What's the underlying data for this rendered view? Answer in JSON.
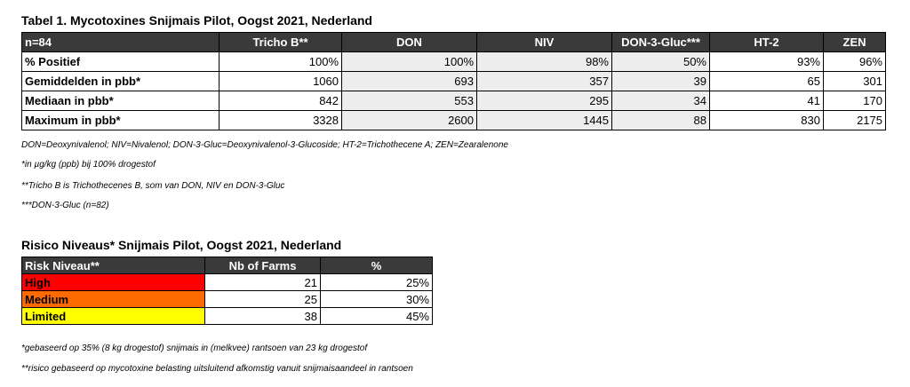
{
  "table1": {
    "title": "Tabel 1. Mycotoxines Snijmais Pilot, Oogst 2021, Nederland",
    "headers": [
      "n=84",
      "Tricho B**",
      "DON",
      "NIV",
      "DON-3-Gluc***",
      "HT-2",
      "ZEN"
    ],
    "rows": [
      {
        "label": "% Positief",
        "values": [
          "100%",
          "100%",
          "98%",
          "50%",
          "93%",
          "96%"
        ]
      },
      {
        "label": "Gemiddelden in pbb*",
        "values": [
          "1060",
          "693",
          "357",
          "39",
          "65",
          "301"
        ]
      },
      {
        "label": "Mediaan in pbb*",
        "values": [
          "842",
          "553",
          "295",
          "34",
          "41",
          "170"
        ]
      },
      {
        "label": "Maximum in pbb*",
        "values": [
          "3328",
          "2600",
          "1445",
          "88",
          "830",
          "2175"
        ]
      }
    ],
    "notes": [
      "DON=Deoxynivalenol; NIV=Nivalenol; DON-3-Gluc=Deoxynivalenol-3-Glucoside; HT-2=Trichothecene A; ZEN=Zearalenone",
      "*in  µg/kg (ppb) bij 100% drogestof",
      "**Tricho B is Trichothecenes B, som van DON, NIV en DON-3-Gluc",
      "***DON-3-Gluc (n=82)"
    ]
  },
  "table2": {
    "title": "Risico Niveaus* Snijmais Pilot, Oogst 2021, Nederland",
    "headers": [
      "Risk Niveau**",
      "Nb of Farms",
      "%"
    ],
    "rows": [
      {
        "label": "High",
        "farms": "21",
        "pct": "25%",
        "color": "#ff0000"
      },
      {
        "label": "Medium",
        "farms": "25",
        "pct": "30%",
        "color": "#ff6a00"
      },
      {
        "label": "Limited",
        "farms": "38",
        "pct": "45%",
        "color": "#ffff00"
      }
    ],
    "notes": [
      "*gebaseerd op 35% (8 kg drogestof) snijmais in (melkvee) rantsoen van 23 kg drogestof",
      "**risico gebaseerd op mycotoxine belasting uitsluitend afkomstig vanuit snijmaisaandeel in rantsoen"
    ]
  }
}
